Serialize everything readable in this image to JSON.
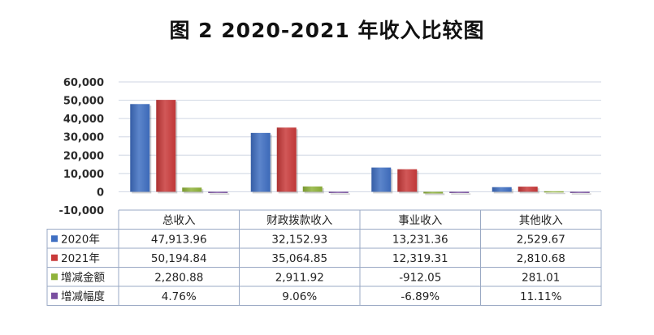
{
  "title": "图 2   2020-2021 年收入比较图",
  "chart_data": {
    "type": "bar",
    "categories": [
      "总收入",
      "财政拨款收入",
      "事业收入",
      "其他收入"
    ],
    "ylim": [
      -10000,
      60000
    ],
    "yticks": [
      -10000,
      0,
      10000,
      20000,
      30000,
      40000,
      50000,
      60000
    ],
    "ytick_labels": [
      "-10,000",
      "0",
      "10,000",
      "20,000",
      "30,000",
      "40,000",
      "50,000",
      "60,000"
    ],
    "grid": true,
    "legend_position": "data-table",
    "series": [
      {
        "name": "2020年",
        "color": "#3f6fc2",
        "values": [
          47913.96,
          32152.93,
          13231.36,
          2529.67
        ],
        "labels": [
          "47,913.96",
          "32,152.93",
          "13,231.36",
          "2,529.67"
        ]
      },
      {
        "name": "2021年",
        "color": "#c93a3a",
        "values": [
          50194.84,
          35064.85,
          12319.31,
          2810.68
        ],
        "labels": [
          "50,194.84",
          "35,064.85",
          "12,319.31",
          "2,810.68"
        ]
      },
      {
        "name": "增减金额",
        "color": "#8fb33a",
        "values": [
          2280.88,
          2911.92,
          -912.05,
          281.01
        ],
        "labels": [
          "2,280.88",
          "2,911.92",
          "-912.05",
          "281.01"
        ]
      },
      {
        "name": "增减幅度",
        "color": "#7a4fa0",
        "values": [
          4.76,
          9.06,
          -6.89,
          11.11
        ],
        "labels": [
          "4.76%",
          "9.06%",
          "-6.89%",
          "11.11%"
        ]
      }
    ]
  }
}
